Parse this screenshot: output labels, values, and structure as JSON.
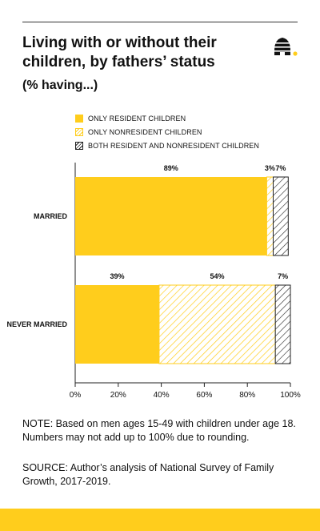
{
  "title": "Living with or without their children, by fathers’ status",
  "subtitle": "(% having...)",
  "note": "NOTE: Based on men ages 15-49 with children under age 18. Numbers may not add up to 100% due to rounding.",
  "source": "SOURCE: Author’s analysis of National Survey of Family Growth, 2017-2019.",
  "colors": {
    "accent": "#ffcd1c",
    "dark": "#222222"
  },
  "chart_data": {
    "type": "bar",
    "orientation": "horizontal",
    "stacked": true,
    "categories": [
      "MARRIED",
      "NEVER MARRIED"
    ],
    "series": [
      {
        "name": "ONLY RESIDENT CHILDREN",
        "values": [
          89,
          39
        ],
        "labels": [
          "89%",
          "39%"
        ],
        "style": "solid",
        "color": "#ffcd1c"
      },
      {
        "name": "ONLY NONRESIDENT CHILDREN",
        "values": [
          3,
          54
        ],
        "labels": [
          "3%",
          "54%"
        ],
        "style": "hatch",
        "color": "#ffcd1c"
      },
      {
        "name": "BOTH RESIDENT AND NONRESIDENT CHILDREN",
        "values": [
          7,
          7
        ],
        "labels": [
          "7%",
          "7%"
        ],
        "style": "hatch",
        "color": "#222222"
      }
    ],
    "xlim": [
      0,
      100
    ],
    "xticks": [
      "0%",
      "20%",
      "40%",
      "60%",
      "80%",
      "100%"
    ],
    "legend_position": "top-left",
    "grid": false
  }
}
